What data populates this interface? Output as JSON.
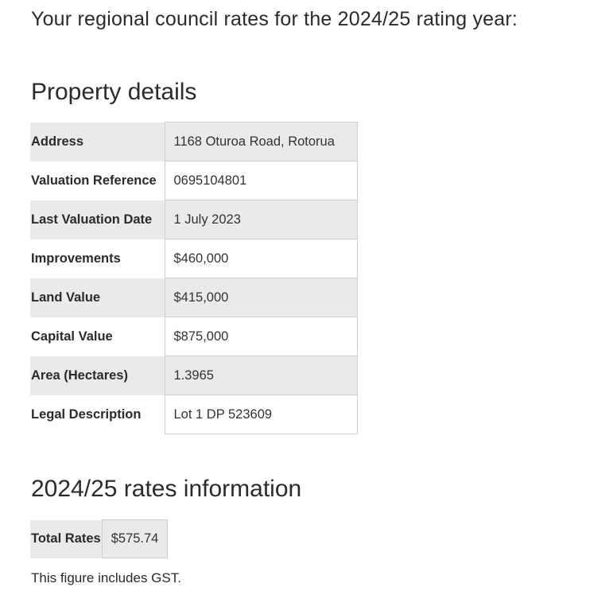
{
  "intro_text": "Your regional council rates for the 2024/25 rating year:",
  "property_details": {
    "title": "Property details",
    "rows": [
      {
        "label": "Address",
        "value": "1168 Oturoa Road, Rotorua"
      },
      {
        "label": "Valuation Reference",
        "value": "0695104801"
      },
      {
        "label": "Last Valuation Date",
        "value": "1 July 2023"
      },
      {
        "label": "Improvements",
        "value": "$460,000"
      },
      {
        "label": "Land Value",
        "value": "$415,000"
      },
      {
        "label": "Capital Value",
        "value": "$875,000"
      },
      {
        "label": "Area (Hectares)",
        "value": "1.3965"
      },
      {
        "label": "Legal Description",
        "value": "Lot 1 DP 523609"
      }
    ]
  },
  "rates_info": {
    "title": "2024/25 rates information",
    "total_label": "Total Rates",
    "total_value": "$575.74",
    "note": "This figure includes GST."
  },
  "colors": {
    "row_shade": "#eaeaea",
    "border": "#cfcfcf",
    "text": "#2b2b2b"
  }
}
